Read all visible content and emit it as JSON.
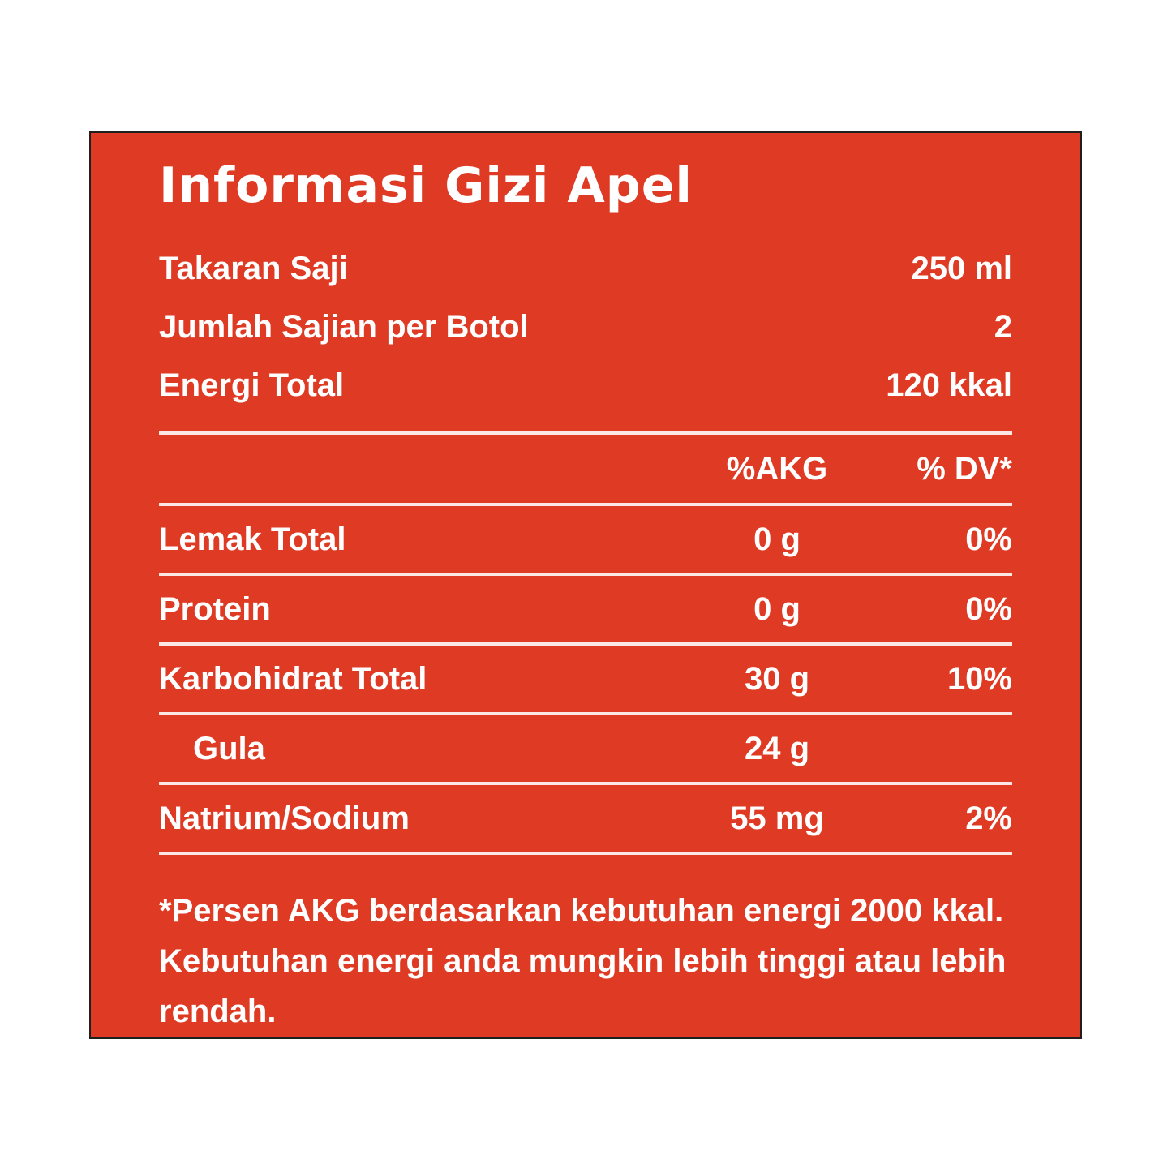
{
  "panel": {
    "title": "Informasi Gizi Apel",
    "bg_color": "#de3a24",
    "border_color": "#1f1f1f",
    "text_color": "#ffffff",
    "divider_color": "#f4ece8",
    "serving_rows": [
      {
        "label": "Takaran Saji",
        "value": "250 ml"
      },
      {
        "label": "Jumlah Sajian per Botol",
        "value": "2"
      },
      {
        "label": "Energi Total",
        "value": "120 kkal"
      }
    ],
    "columns": {
      "akg": "%AKG",
      "dv": "% DV*"
    },
    "nutrients": [
      {
        "label": "Lemak Total",
        "amount": "0 g",
        "dv": "0%",
        "indent": false
      },
      {
        "label": "Protein",
        "amount": "0 g",
        "dv": "0%",
        "indent": false
      },
      {
        "label": "Karbohidrat Total",
        "amount": "30 g",
        "dv": "10%",
        "indent": false
      },
      {
        "label": "Gula",
        "amount": "24 g",
        "dv": "",
        "indent": true
      },
      {
        "label": "Natrium/Sodium",
        "amount": "55 mg",
        "dv": "2%",
        "indent": false
      }
    ],
    "footnotes": [
      "*Persen AKG berdasarkan kebutuhan energi 2000 kkal.",
      "Kebutuhan energi anda mungkin lebih tinggi atau lebih rendah."
    ]
  }
}
